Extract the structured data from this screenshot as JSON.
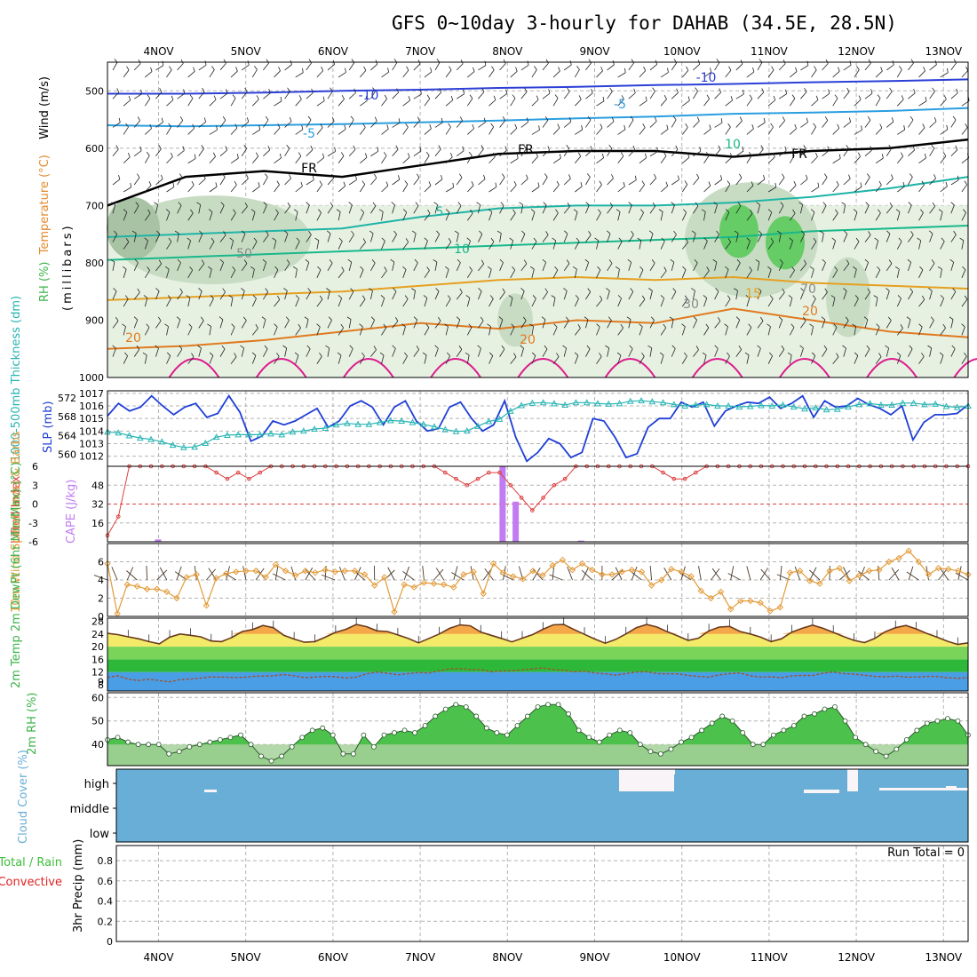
{
  "title": "GFS 0~10day 3-hourly for DAHAB (34.5E, 28.5N)",
  "dates": [
    "4NOV",
    "5NOV",
    "6NOV",
    "7NOV",
    "8NOV",
    "9NOV",
    "10NOV",
    "11NOV",
    "12NOV",
    "13NOV"
  ],
  "colors": {
    "grid": "#b4b4b4",
    "rh_green": "#3cb44b",
    "temp_warm": "#e38b2e",
    "temp_hot": "#dd1c8c",
    "slp": "#1f3fd6",
    "thickness": "#28b4b4",
    "cape": "#c07cf0",
    "lifted": "#dd4040",
    "wind": "#e39b3a",
    "rh2m": "#4cc24c",
    "cloud": "#69aed6",
    "precip_total": "#3cbf3c",
    "precip_conv": "#e02020"
  },
  "chart_data": [
    {
      "type": "line",
      "panel": "upper-air",
      "ylabel_parts": [
        {
          "text": "RH (%)",
          "color": "#3cb44b"
        },
        {
          "text": "Temperature (°C)",
          "color": "#e38b2e"
        },
        {
          "text": "Wind (m/s)",
          "color": "#000000"
        }
      ],
      "ylabel2": "(millibars)",
      "ylim": [
        1000,
        450
      ],
      "yticks": [
        500,
        600,
        700,
        800,
        900,
        1000
      ],
      "contour_labels": [
        "-10",
        "-10",
        "-5",
        "-5",
        "FR",
        "FR",
        "FR",
        "5",
        "10",
        "15",
        "20",
        "20",
        "20",
        "50",
        "30",
        "70",
        "10"
      ],
      "isotherms": [
        {
          "label": "-10",
          "pressure": [
            505,
            505,
            503,
            500,
            498,
            495,
            493,
            490,
            488,
            485,
            483,
            480
          ]
        },
        {
          "label": "-5",
          "pressure": [
            560,
            562,
            560,
            558,
            555,
            552,
            548,
            545,
            540,
            538,
            535,
            530
          ]
        },
        {
          "label": "FR",
          "pressure": [
            700,
            650,
            640,
            650,
            630,
            610,
            605,
            605,
            615,
            605,
            600,
            585
          ]
        },
        {
          "label": "5",
          "pressure": [
            755,
            750,
            745,
            740,
            720,
            705,
            700,
            700,
            695,
            685,
            670,
            650
          ]
        },
        {
          "label": "10",
          "pressure": [
            795,
            790,
            785,
            780,
            775,
            770,
            765,
            760,
            755,
            745,
            740,
            735
          ]
        },
        {
          "label": "15",
          "pressure": [
            865,
            860,
            855,
            850,
            840,
            830,
            825,
            830,
            825,
            835,
            840,
            845
          ]
        },
        {
          "label": "20",
          "pressure": [
            950,
            945,
            935,
            920,
            905,
            915,
            900,
            905,
            880,
            900,
            920,
            930
          ]
        }
      ]
    },
    {
      "type": "line",
      "panel": "slp-thickness",
      "ylabel_left": "1000-500mb Thickness (dm)",
      "ylabel_right": "SLP (mb)",
      "y_left_ticks": [
        560,
        564,
        568,
        572
      ],
      "y_right_ticks": [
        1012,
        1013,
        1014,
        1015,
        1016,
        1017
      ],
      "series": [
        {
          "name": "SLP (mb)",
          "axis": "right",
          "values": [
            1015.2,
            1016.2,
            1015.6,
            1015.9,
            1016.8,
            1016.0,
            1015.3,
            1015.9,
            1016.2,
            1015.1,
            1015.4,
            1016.8,
            1015.5,
            1013.2,
            1013.6,
            1014.8,
            1014.5,
            1014.8,
            1015.3,
            1015.8,
            1014.3,
            1014.8,
            1016.0,
            1016.4,
            1015.9,
            1014.5,
            1015.9,
            1016.4,
            1014.8,
            1014.0,
            1014.2,
            1015.9,
            1016.3,
            1015.0,
            1014.0,
            1014.5,
            1016.4,
            1013.5,
            1011.6,
            1012.3,
            1013.4,
            1013.0,
            1011.9,
            1012.3,
            1015.0,
            1014.8,
            1013.5,
            1011.9,
            1012.2,
            1014.3,
            1015.0,
            1015.0,
            1016.3,
            1015.9,
            1016.3,
            1014.4,
            1015.6,
            1016.0,
            1016.3,
            1016.2,
            1016.7,
            1015.8,
            1016.2,
            1016.8,
            1015.1,
            1016.4,
            1015.9,
            1016.0,
            1016.6,
            1016.1,
            1015.8,
            1015.3,
            1016.0,
            1013.3,
            1014.7,
            1015.3,
            1015.3,
            1015.4,
            1016.1
          ]
        },
        {
          "name": "1000-500mb Thickness (dm)",
          "axis": "left",
          "values": [
            564.8,
            564.6,
            564.0,
            563.5,
            563.2,
            562.7,
            562.0,
            561.5,
            561.6,
            562.4,
            563.7,
            564.1,
            564.2,
            564.2,
            564.2,
            564.4,
            564.2,
            564.8,
            565.0,
            565.4,
            565.6,
            566.3,
            566.6,
            566.4,
            566.4,
            566.8,
            567.2,
            567.1,
            566.8,
            566.4,
            565.9,
            565.3,
            564.9,
            565.0,
            566.0,
            567.0,
            567.5,
            569.2,
            570.4,
            570.9,
            571.0,
            570.8,
            570.5,
            571.0,
            571.0,
            570.8,
            570.7,
            570.8,
            571.3,
            571.4,
            571.2,
            571.0,
            570.6,
            570.3,
            570.5,
            570.6,
            570.3,
            570.3,
            570.1,
            570.2,
            570.4,
            570.3,
            570.5,
            570.1,
            569.7,
            569.9,
            569.5,
            569.6,
            570.1,
            570.6,
            570.8,
            570.5,
            570.5,
            570.9,
            570.9,
            570.6,
            570.7,
            570.2,
            570.0,
            570.3
          ]
        }
      ]
    },
    {
      "type": "bar",
      "panel": "cape-lifted",
      "ylabel_left": "Lifted Index",
      "ylabel_right": "CAPE (J/kg)",
      "y_left_ticks": [
        "6",
        "3",
        "0",
        "-3",
        "-6"
      ],
      "y_right_ticks": [
        16,
        32,
        48
      ],
      "series": [
        {
          "name": "CAPE (J/kg)",
          "values": [
            {
              "x": 0.0,
              "y": 2
            },
            {
              "x": 3.95,
              "y": 64
            },
            {
              "x": 4.1,
              "y": 34
            },
            {
              "x": 4.85,
              "y": 1
            }
          ]
        },
        {
          "name": "Lifted Index",
          "values": [
            -5,
            -2,
            6,
            6,
            6,
            6,
            6,
            6,
            6,
            6,
            5,
            4,
            5,
            4,
            5,
            6,
            6,
            6,
            6,
            6,
            6,
            6,
            6,
            6,
            6,
            6,
            6,
            6,
            6,
            6,
            6,
            5,
            4,
            3,
            4,
            5,
            5,
            3,
            1,
            -1,
            1,
            3,
            4,
            6,
            6,
            6,
            6,
            6,
            6,
            6,
            6,
            5,
            4,
            4,
            5,
            6,
            6,
            6,
            6,
            6,
            6,
            6,
            6,
            6,
            6,
            6,
            6,
            6,
            6,
            6,
            6,
            6,
            6,
            6,
            6,
            6,
            6,
            6,
            6,
            6
          ]
        }
      ]
    },
    {
      "type": "line",
      "panel": "wind10m",
      "ylabel": "10m Wind Speed (m/s) & Barbs",
      "yticks": [
        0,
        2,
        4,
        6
      ],
      "series": [
        {
          "name": "10m Wind Speed (m/s)",
          "values": [
            5.8,
            0.3,
            3.5,
            3.3,
            3.0,
            3.0,
            2.7,
            2.0,
            4.3,
            4.6,
            1.2,
            4.2,
            4.7,
            4.9,
            5.0,
            5.0,
            4.3,
            5.7,
            5.0,
            4.5,
            5.0,
            4.8,
            5.1,
            4.9,
            5.0,
            5.0,
            4.6,
            3.4,
            4.3,
            0.5,
            3.5,
            3.2,
            3.7,
            3.6,
            3.5,
            3.2,
            4.6,
            4.9,
            2.5,
            5.8,
            4.8,
            4.4,
            4.1,
            5.0,
            4.5,
            5.6,
            6.2,
            5.1,
            5.8,
            5.1,
            4.6,
            4.6,
            4.9,
            5.1,
            4.9,
            3.4,
            4.0,
            5.2,
            4.9,
            4.4,
            2.8,
            2.0,
            2.7,
            0.8,
            1.7,
            1.7,
            1.5,
            0.6,
            1.0,
            4.8,
            5.0,
            3.9,
            3.6,
            5.0,
            5.3,
            3.9,
            4.5,
            5.0,
            5.1,
            6.0,
            6.4,
            7.2,
            6.0,
            4.6,
            5.3,
            5.2,
            5.0,
            4.6
          ]
        }
      ]
    },
    {
      "type": "area",
      "panel": "temp2m",
      "ylabel": "2m Temp 2m DewPt (6hr Min/Max) (°C)",
      "yticks": [
        8,
        9,
        12,
        16,
        20,
        24,
        28
      ],
      "series": [
        {
          "name": "2m Temp",
          "values": [
            24.2,
            23.8,
            23.1,
            22.5,
            21.6,
            20.9,
            23.0,
            24.0,
            23.6,
            23.1,
            21.8,
            21.6,
            22.9,
            24.8,
            25.4,
            26.7,
            26.0,
            23.6,
            22.4,
            21.4,
            21.6,
            23.0,
            24.5,
            25.5,
            27.0,
            26.3,
            25.0,
            24.8,
            23.7,
            22.6,
            21.2,
            22.6,
            24.0,
            25.8,
            26.9,
            26.6,
            24.6,
            23.6,
            22.6,
            21.5,
            22.7,
            23.8,
            25.5,
            26.9,
            27.0,
            25.4,
            23.9,
            22.4,
            21.1,
            22.3,
            24.0,
            26.0,
            27.0,
            26.2,
            24.7,
            23.4,
            22.0,
            22.7,
            25.0,
            26.2,
            26.4,
            24.8,
            24.0,
            23.0,
            21.6,
            22.5,
            24.6,
            25.8,
            26.8,
            25.8,
            24.5,
            23.2,
            22.0,
            21.3,
            22.6,
            24.7,
            26.0,
            26.7,
            25.6,
            24.2,
            23.0,
            21.7,
            20.7,
            21.2
          ]
        },
        {
          "name": "2m DewPt",
          "values": [
            10.3,
            10.8,
            9.8,
            9.3,
            9.7,
            9.3,
            8.9,
            9.6,
            9.8,
            10.1,
            10.5,
            10.4,
            10.3,
            10.3,
            10.6,
            10.7,
            10.8,
            11.2,
            10.8,
            10.2,
            10.4,
            10.6,
            10.5,
            10.1,
            10.4,
            11.4,
            12.0,
            11.6,
            11.1,
            11.5,
            11.8,
            11.7,
            12.4,
            13.0,
            13.1,
            12.8,
            12.8,
            12.1,
            12.3,
            12.4,
            12.7,
            13.0,
            13.3,
            12.8,
            12.6,
            12.1,
            12.3,
            11.7,
            11.4,
            11.0,
            11.5,
            12.0,
            12.1,
            11.5,
            11.4,
            11.4,
            10.9,
            10.6,
            10.4,
            11.1,
            11.5,
            11.7,
            10.8,
            10.4,
            10.5,
            10.2,
            10.8,
            10.9,
            10.9,
            11.6,
            12.0,
            11.5,
            11.3,
            11.0,
            10.6,
            10.5,
            10.7,
            10.4,
            10.4,
            10.6,
            10.6,
            10.2,
            10.0,
            10.2
          ]
        }
      ]
    },
    {
      "type": "area",
      "panel": "rh2m",
      "ylabel": "2m RH (%)",
      "yticks": [
        40,
        50,
        60
      ],
      "series": [
        {
          "name": "2m RH (%)",
          "values": [
            42,
            43,
            41,
            40,
            40,
            40,
            36,
            37,
            39,
            40,
            41,
            42,
            43,
            44,
            40,
            35,
            33,
            35,
            39,
            43,
            46,
            47,
            44,
            36,
            36,
            44,
            39,
            44,
            45,
            46,
            45,
            48,
            52,
            55,
            57,
            56,
            52,
            47,
            45,
            44,
            48,
            52,
            56,
            57,
            57,
            53,
            46,
            43,
            41,
            44,
            46,
            45,
            40,
            37,
            36,
            38,
            41,
            43,
            46,
            49,
            52,
            50,
            45,
            40,
            40,
            44,
            46,
            48,
            52,
            53,
            55,
            56,
            50,
            43,
            40,
            37,
            35,
            38,
            42,
            46,
            49,
            50,
            51,
            50,
            44
          ]
        }
      ]
    },
    {
      "type": "area",
      "panel": "cloud",
      "ylabel": "Cloud Cover (%)",
      "yticks": [
        "low",
        "middle",
        "high"
      ]
    },
    {
      "type": "bar",
      "panel": "precip",
      "ylabel": "3hr Precip (mm)",
      "left_labels": [
        "Total / Rain",
        "Convective"
      ],
      "yticks": [
        "0",
        "0.2",
        "0.4",
        "0.6",
        "0.8"
      ],
      "annotation": "Run Total = 0",
      "series": [
        {
          "name": "3hr Precip (mm)",
          "values": []
        }
      ]
    }
  ]
}
